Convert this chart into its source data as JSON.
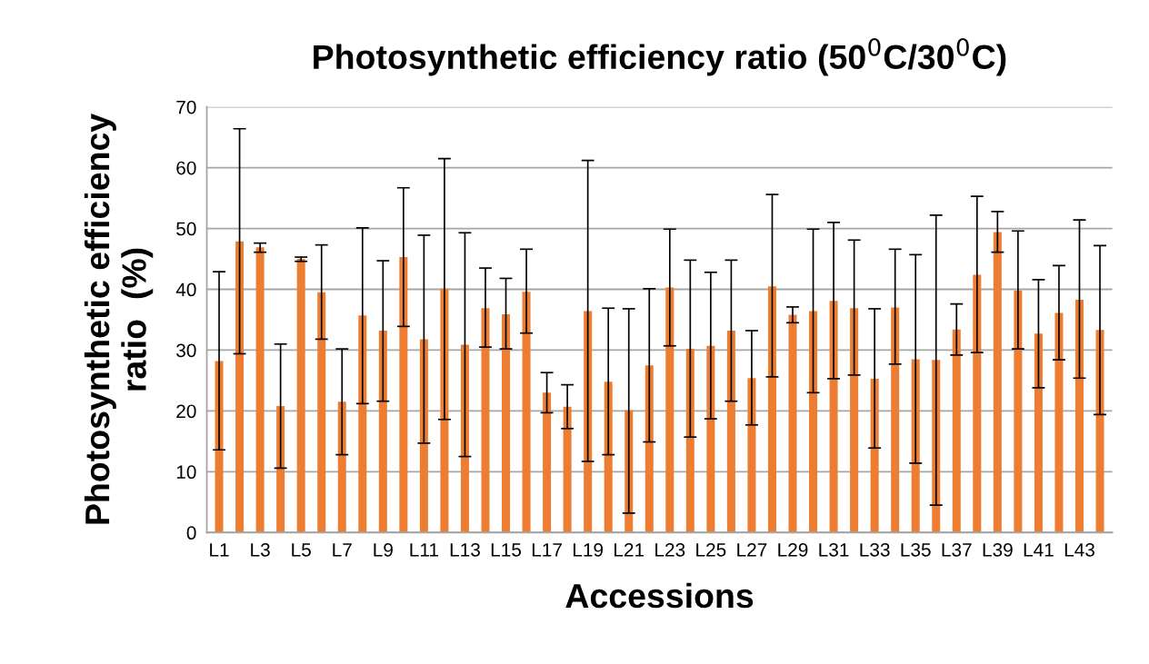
{
  "chart_data": {
    "type": "bar",
    "title": "Photosynthetic efficiency ratio (50$^{0}$C/30$^{0}$C)",
    "xlabel": "Accessions",
    "ylabel": "Photosynthetic efficiency\nratio  (%)",
    "categories": [
      "L1",
      null,
      "L3",
      null,
      "L5",
      null,
      "L7",
      null,
      "L9",
      null,
      "L11",
      null,
      "L13",
      null,
      "L15",
      null,
      "L17",
      null,
      "L19",
      null,
      "L21",
      null,
      "L23",
      null,
      "L25",
      null,
      "L27",
      null,
      "L29",
      null,
      "L31",
      null,
      "L33",
      null,
      "L35",
      null,
      "L37",
      null,
      "L39",
      null,
      "L41",
      null,
      "L43",
      null
    ],
    "values": [
      28.2,
      47.9,
      46.9,
      20.8,
      45.0,
      39.5,
      21.5,
      35.7,
      33.2,
      45.3,
      31.8,
      40.1,
      30.9,
      36.9,
      35.9,
      39.6,
      23.0,
      20.7,
      36.4,
      24.8,
      20.1,
      27.5,
      40.3,
      30.2,
      30.7,
      33.2,
      25.4,
      40.5,
      35.8,
      36.4,
      38.1,
      36.9,
      25.3,
      37.0,
      28.5,
      28.4,
      33.4,
      42.4,
      49.4,
      39.8,
      32.7,
      36.1,
      38.3,
      33.3
    ],
    "errors": [
      [
        13.6,
        42.9
      ],
      [
        29.4,
        66.4
      ],
      [
        46.1,
        47.6
      ],
      [
        10.6,
        31.0
      ],
      [
        44.6,
        45.3
      ],
      [
        31.8,
        47.3
      ],
      [
        12.8,
        30.2
      ],
      [
        21.2,
        50.1
      ],
      [
        21.6,
        44.7
      ],
      [
        33.9,
        56.7
      ],
      [
        14.7,
        48.9
      ],
      [
        18.6,
        61.5
      ],
      [
        12.5,
        49.3
      ],
      [
        30.5,
        43.5
      ],
      [
        30.2,
        41.8
      ],
      [
        32.8,
        46.6
      ],
      [
        19.7,
        26.3
      ],
      [
        17.1,
        24.3
      ],
      [
        11.7,
        61.2
      ],
      [
        12.8,
        36.9
      ],
      [
        3.2,
        36.8
      ],
      [
        14.9,
        40.1
      ],
      [
        30.7,
        49.9
      ],
      [
        15.7,
        44.8
      ],
      [
        18.7,
        42.8
      ],
      [
        21.6,
        44.8
      ],
      [
        17.7,
        33.2
      ],
      [
        25.6,
        55.6
      ],
      [
        34.5,
        37.1
      ],
      [
        23.0,
        49.9
      ],
      [
        25.3,
        51.0
      ],
      [
        25.9,
        48.1
      ],
      [
        13.9,
        36.8
      ],
      [
        27.7,
        46.6
      ],
      [
        11.4,
        45.7
      ],
      [
        4.5,
        52.2
      ],
      [
        29.2,
        37.6
      ],
      [
        29.6,
        55.3
      ],
      [
        46.1,
        52.8
      ],
      [
        30.2,
        49.6
      ],
      [
        23.8,
        41.6
      ],
      [
        28.4,
        43.9
      ],
      [
        25.4,
        51.4
      ],
      [
        19.4,
        47.2
      ]
    ],
    "color": "#ed7d31",
    "ylim": [
      0,
      70
    ],
    "yticks": [
      0,
      10,
      20,
      30,
      40,
      50,
      60,
      70
    ],
    "grid": "y"
  }
}
